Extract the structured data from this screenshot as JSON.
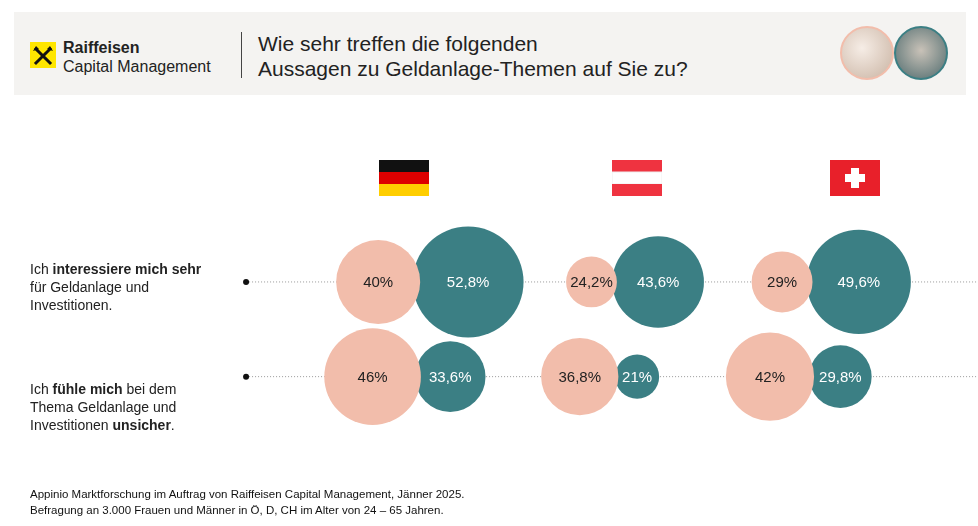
{
  "chart_data": {
    "type": "bubble",
    "brand": [
      "Raiffeisen",
      "Capital Management"
    ],
    "title": "Wie sehr treffen die folgenden\nAussagen zu Geldanlage-Themen auf Sie zu?",
    "statements": [
      [
        "Ich ",
        "interessiere mich sehr",
        " für Geldanlage und Investitionen."
      ],
      [
        "Ich ",
        "fühle mich",
        " bei dem Thema Geldanlage und Investitionen ",
        "unsicher",
        "."
      ]
    ],
    "series": [
      {
        "color": "#f2bdab",
        "values": [
          [
            40,
            24.2,
            29
          ],
          [
            46,
            36.8,
            42
          ]
        ],
        "value_labels": [
          [
            "40%",
            "24,2%",
            "29%"
          ],
          [
            "46%",
            "36,8%",
            "42%"
          ]
        ]
      },
      {
        "color": "#3b7f84",
        "values": [
          [
            52.8,
            43.6,
            49.6
          ],
          [
            33.6,
            21,
            29.8
          ]
        ],
        "value_labels": [
          [
            "52,8%",
            "43,6%",
            "49,6%"
          ],
          [
            "33,6%",
            "21%",
            "29,8%"
          ]
        ]
      }
    ],
    "data_labels": true,
    "tick_labels": false,
    "source": [
      "Appinio Marktforschung im Auftrag von Raiffeisen Capital Management, Jänner 2025.",
      "Befragung an 3.000 Frauen und Männer in Ö, D, CH im Alter von 24 – 65 Jahren."
    ]
  }
}
